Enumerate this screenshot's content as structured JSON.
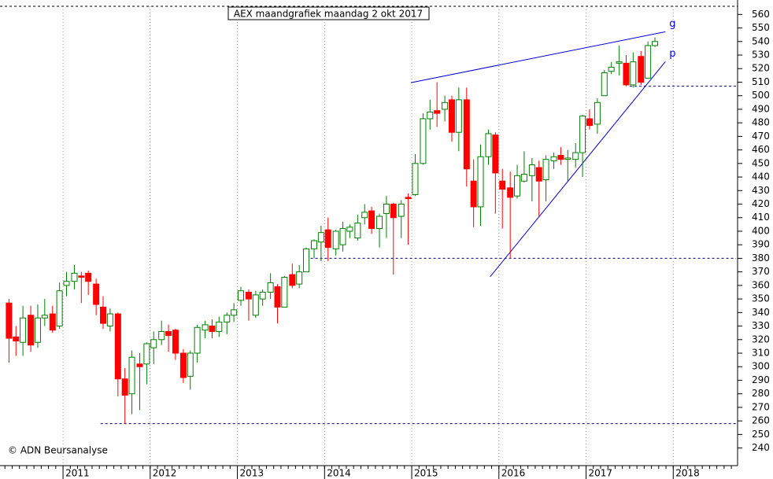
{
  "chart_data": {
    "type": "candlestick",
    "title": "AEX maandgrafiek maandag 2 okt 2017",
    "credit": "© ADN Beursanalyse",
    "up_color": "#008000",
    "down_color": "#ff0000",
    "x": [
      2010.38,
      2010.46,
      2010.54,
      2010.63,
      2010.71,
      2010.79,
      2010.88,
      2010.96,
      2011.04,
      2011.13,
      2011.21,
      2011.29,
      2011.38,
      2011.46,
      2011.54,
      2011.63,
      2011.71,
      2011.79,
      2011.88,
      2011.96,
      2012.04,
      2012.13,
      2012.21,
      2012.29,
      2012.38,
      2012.46,
      2012.54,
      2012.63,
      2012.71,
      2012.79,
      2012.88,
      2012.96,
      2013.04,
      2013.13,
      2013.21,
      2013.29,
      2013.38,
      2013.46,
      2013.54,
      2013.63,
      2013.71,
      2013.79,
      2013.88,
      2013.96,
      2014.04,
      2014.13,
      2014.21,
      2014.29,
      2014.38,
      2014.46,
      2014.54,
      2014.63,
      2014.71,
      2014.79,
      2014.88,
      2014.96,
      2015.04,
      2015.13,
      2015.21,
      2015.29,
      2015.38,
      2015.46,
      2015.54,
      2015.63,
      2015.71,
      2015.79,
      2015.88,
      2015.96,
      2016.04,
      2016.13,
      2016.21,
      2016.29,
      2016.38,
      2016.46,
      2016.54,
      2016.63,
      2016.71,
      2016.79,
      2016.88,
      2016.96,
      2017.04,
      2017.13,
      2017.21,
      2017.29,
      2017.38,
      2017.46,
      2017.54,
      2017.63,
      2017.71,
      2017.79
    ],
    "candles": [
      [
        347,
        350,
        303,
        321
      ],
      [
        322,
        330,
        308,
        319
      ],
      [
        318,
        345,
        308,
        336
      ],
      [
        338,
        345,
        311,
        316
      ],
      [
        318,
        346,
        314,
        336
      ],
      [
        336,
        350,
        330,
        338
      ],
      [
        339,
        345,
        325,
        327
      ],
      [
        330,
        362,
        328,
        356
      ],
      [
        360,
        370,
        352,
        363
      ],
      [
        363,
        375,
        357,
        369
      ],
      [
        367,
        370,
        347,
        366
      ],
      [
        369,
        371,
        353,
        363
      ],
      [
        361,
        365,
        338,
        346
      ],
      [
        344,
        352,
        328,
        332
      ],
      [
        330,
        343,
        326,
        339
      ],
      [
        339,
        340,
        278,
        291
      ],
      [
        291,
        299,
        258,
        279
      ],
      [
        280,
        312,
        265,
        307
      ],
      [
        302,
        310,
        268,
        300
      ],
      [
        302,
        318,
        287,
        317
      ],
      [
        314,
        326,
        302,
        320
      ],
      [
        320,
        334,
        316,
        326
      ],
      [
        326,
        331,
        311,
        323
      ],
      [
        327,
        328,
        305,
        310
      ],
      [
        310,
        313,
        288,
        292
      ],
      [
        293,
        312,
        283,
        310
      ],
      [
        310,
        331,
        303,
        329
      ],
      [
        327,
        334,
        321,
        331
      ],
      [
        330,
        335,
        321,
        326
      ],
      [
        326,
        337,
        322,
        333
      ],
      [
        333,
        340,
        324,
        338
      ],
      [
        338,
        347,
        333,
        342
      ],
      [
        349,
        359,
        345,
        356
      ],
      [
        355,
        357,
        334,
        350
      ],
      [
        338,
        356,
        336,
        353
      ],
      [
        350,
        357,
        345,
        355
      ],
      [
        355,
        369,
        350,
        362
      ],
      [
        359,
        361,
        332,
        344
      ],
      [
        344,
        367,
        344,
        366
      ],
      [
        368,
        376,
        358,
        360
      ],
      [
        361,
        375,
        358,
        370
      ],
      [
        370,
        388,
        370,
        387
      ],
      [
        387,
        394,
        380,
        393
      ],
      [
        392,
        404,
        378,
        399
      ],
      [
        401,
        410,
        378,
        388
      ],
      [
        387,
        401,
        382,
        400
      ],
      [
        390,
        407,
        385,
        402
      ],
      [
        400,
        405,
        395,
        403
      ],
      [
        395,
        412,
        393,
        406
      ],
      [
        410,
        420,
        405,
        414
      ],
      [
        415,
        418,
        398,
        402
      ],
      [
        402,
        413,
        388,
        411
      ],
      [
        413,
        426,
        395,
        420
      ],
      [
        420,
        421,
        368,
        410
      ],
      [
        411,
        423,
        395,
        420
      ],
      [
        425,
        428,
        390,
        424
      ],
      [
        427,
        457,
        426,
        450
      ],
      [
        450,
        487,
        449,
        483
      ],
      [
        483,
        497,
        475,
        488
      ],
      [
        489,
        510,
        477,
        487
      ],
      [
        490,
        500,
        481,
        495
      ],
      [
        497,
        500,
        466,
        473
      ],
      [
        473,
        506,
        459,
        497
      ],
      [
        497,
        506,
        433,
        446
      ],
      [
        437,
        453,
        403,
        418
      ],
      [
        418,
        464,
        404,
        455
      ],
      [
        455,
        475,
        449,
        472
      ],
      [
        471,
        473,
        413,
        443
      ],
      [
        437,
        446,
        402,
        431
      ],
      [
        432,
        444,
        380,
        425
      ],
      [
        426,
        449,
        424,
        441
      ],
      [
        437,
        459,
        436,
        442
      ],
      [
        441,
        454,
        422,
        449
      ],
      [
        447,
        452,
        411,
        437
      ],
      [
        438,
        456,
        422,
        453
      ],
      [
        452,
        458,
        446,
        455
      ],
      [
        456,
        462,
        449,
        453
      ],
      [
        453,
        460,
        437,
        454
      ],
      [
        453,
        465,
        447,
        458
      ],
      [
        458,
        486,
        440,
        485
      ],
      [
        483,
        490,
        475,
        478
      ],
      [
        479,
        498,
        472,
        495
      ],
      [
        500,
        519,
        500,
        517
      ],
      [
        518,
        525,
        516,
        521
      ],
      [
        524,
        537,
        515,
        525
      ],
      [
        524,
        530,
        507,
        508
      ],
      [
        508,
        532,
        506,
        525
      ],
      [
        529,
        533,
        508,
        510
      ],
      [
        513,
        540,
        514,
        537
      ],
      [
        537,
        543,
        536,
        540
      ]
    ],
    "xlim": [
      2010.277,
      2018.72
    ],
    "xticks": [
      2011,
      2012,
      2013,
      2014,
      2015,
      2016,
      2017,
      2018
    ],
    "ylim": [
      227,
      566
    ],
    "yticks": [
      240,
      250,
      260,
      270,
      280,
      290,
      300,
      310,
      320,
      330,
      340,
      350,
      360,
      370,
      380,
      390,
      400,
      410,
      420,
      430,
      440,
      450,
      460,
      470,
      480,
      490,
      500,
      510,
      520,
      530,
      540,
      550,
      560
    ],
    "support_lines": [
      {
        "y": 380,
        "x_from": 2013.84
      },
      {
        "y": 507,
        "x_from": 2017.5
      },
      {
        "y": 258,
        "x_from": 2011.43
      }
    ],
    "trendlines": [
      {
        "label": "g",
        "x": [
          2014.99,
          2017.91
        ],
        "y": [
          509.6,
          547.2
        ]
      },
      {
        "label": "p",
        "x": [
          2015.9,
          2017.91
        ],
        "y": [
          366.4,
          525.2
        ]
      }
    ]
  }
}
